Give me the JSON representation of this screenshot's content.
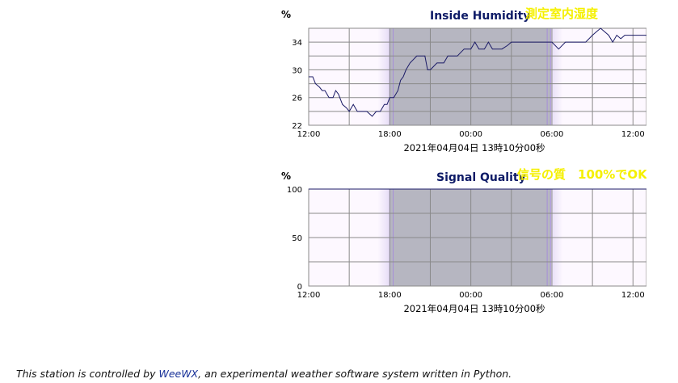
{
  "charts": [
    {
      "title": "Inside Humidity",
      "annotation": "測定室内湿度",
      "unit_label": "%",
      "date_label": "2021年04月04日 13時10分00秒",
      "x_ticks": [
        "12:00",
        "18:00",
        "00:00",
        "06:00",
        "12:00"
      ],
      "y_ticks": [
        "22",
        "26",
        "30",
        "34"
      ]
    },
    {
      "title": "Signal Quality",
      "annotation": "信号の質　100%でOK",
      "unit_label": "%",
      "date_label": "2021年04月04日 13時10分00秒",
      "x_ticks": [
        "12:00",
        "18:00",
        "00:00",
        "06:00",
        "12:00"
      ],
      "y_ticks": [
        "0",
        "50",
        "100"
      ]
    }
  ],
  "chart_data": [
    {
      "type": "line",
      "title": "Inside Humidity",
      "ylabel": "%",
      "xlabel": "2021年04月04日 13時10分00秒",
      "x_unit": "hours from 12:00 on the previous day",
      "ylim": [
        22,
        36
      ],
      "yticks": [
        22,
        26,
        30,
        34
      ],
      "xlim": [
        0,
        25
      ],
      "xticks": [
        0,
        6,
        12,
        18,
        24
      ],
      "grid": true,
      "line_color": "#1a1a66",
      "night_shading": {
        "start": 6,
        "end": 17.9,
        "color": "#b6b6c1",
        "twilight_color": "#e6dcf6"
      },
      "series": [
        {
          "x": [
            0,
            0.3,
            0.5,
            0.8,
            1.0,
            1.2,
            1.5,
            1.8,
            2.0,
            2.2,
            2.5,
            2.8,
            3.0,
            3.3,
            3.6,
            4.0,
            4.3,
            4.7,
            5.0,
            5.3,
            5.6,
            5.8,
            6.0,
            6.3,
            6.6,
            6.8,
            7.0,
            7.2,
            7.5,
            8.0,
            8.3,
            8.6,
            8.8,
            9.0,
            9.5,
            10.0,
            10.3,
            10.6,
            11.0,
            11.5,
            12.0,
            12.3,
            12.6,
            13.0,
            13.3,
            13.6,
            14.0,
            14.3,
            14.7,
            15.0,
            15.5,
            16.0,
            16.5,
            17.0,
            17.5,
            18.0,
            18.5,
            19.0,
            19.3,
            19.6,
            20.0,
            20.5,
            21.0,
            21.3,
            21.6,
            21.9,
            22.2,
            22.5,
            22.8,
            23.1,
            23.4,
            23.7,
            24.0,
            24.5,
            25.0
          ],
          "y": [
            29,
            29,
            28,
            27.5,
            27,
            27,
            26,
            26,
            27,
            26.5,
            25,
            24.5,
            24,
            25,
            24,
            24,
            24,
            23.3,
            24,
            24,
            25,
            25,
            26,
            26,
            27,
            28.5,
            29,
            30,
            31,
            32,
            32,
            32,
            30,
            30,
            31,
            31,
            32,
            32,
            32,
            33,
            33,
            34,
            33,
            33,
            34,
            33,
            33,
            33,
            33.5,
            34,
            34,
            34,
            34,
            34,
            34,
            34,
            33,
            34,
            34,
            34,
            34,
            34,
            35,
            35.5,
            36,
            35.5,
            35,
            34,
            35,
            34.5,
            35,
            35,
            35,
            35,
            35
          ]
        }
      ]
    },
    {
      "type": "line",
      "title": "Signal Quality",
      "ylabel": "%",
      "xlabel": "2021年04月04日 13時10分00秒",
      "x_unit": "hours from 12:00 on the previous day",
      "ylim": [
        0,
        100
      ],
      "yticks": [
        0,
        50,
        100
      ],
      "xlim": [
        0,
        25
      ],
      "xticks": [
        0,
        6,
        12,
        18,
        24
      ],
      "grid": true,
      "line_color": "#1a1a66",
      "night_shading": {
        "start": 6,
        "end": 17.9,
        "color": "#b6b6c1",
        "twilight_color": "#e6dcf6"
      },
      "series": [
        {
          "x": [
            0,
            25
          ],
          "y": [
            100,
            100
          ]
        }
      ]
    }
  ],
  "footer": {
    "prefix": "This station is controlled by ",
    "link_text": "WeeWX",
    "suffix": ", an experimental weather software system written in Python."
  },
  "colors": {
    "plot_bg": "#fdf8ff",
    "grid": "#8a8a8a",
    "title": "#0d1a66",
    "annotation": "#f5f000",
    "link": "#1a3399"
  }
}
